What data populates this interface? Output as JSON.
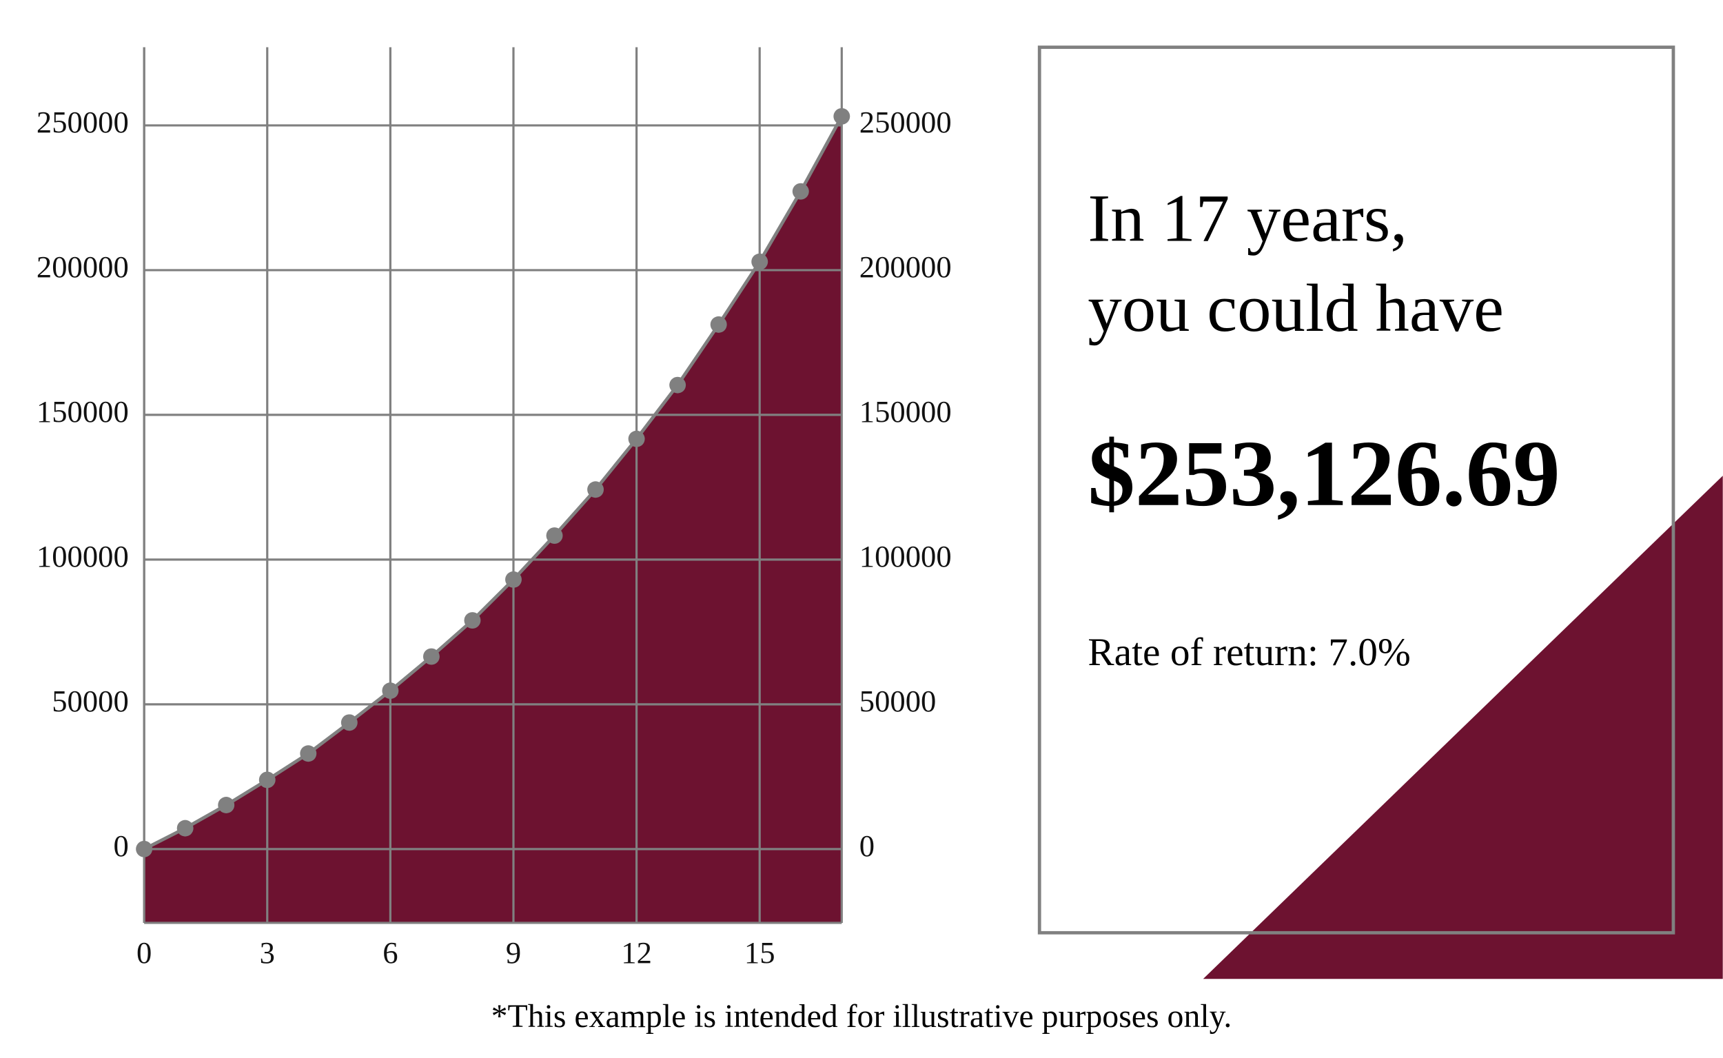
{
  "chart_data": {
    "type": "area",
    "x": [
      0,
      1,
      2,
      3,
      4,
      5,
      6,
      7,
      8,
      9,
      10,
      11,
      12,
      13,
      14,
      15,
      16,
      17
    ],
    "series": [
      {
        "color": "#6d1230",
        "line_color": "#808080",
        "values": [
          0,
          7200,
          15200,
          23900,
          33000,
          43700,
          54700,
          66500,
          79000,
          93100,
          108300,
          124200,
          141700,
          160300,
          181200,
          202900,
          227200,
          253126.69
        ]
      }
    ],
    "xlim": [
      0,
      17
    ],
    "xticks": [
      0,
      3,
      6,
      9,
      12,
      15
    ],
    "ylim": [
      -25500,
      277000
    ],
    "yticks": [
      0,
      50000,
      100000,
      150000,
      200000,
      250000
    ],
    "grid": true
  },
  "panel": {
    "line1": "In 17 years,",
    "line2": "you could have",
    "amount": "$253,126.69",
    "rate": "Rate of return: 7.0%"
  },
  "footnote": "*This example is intended for illustrative purposes only."
}
